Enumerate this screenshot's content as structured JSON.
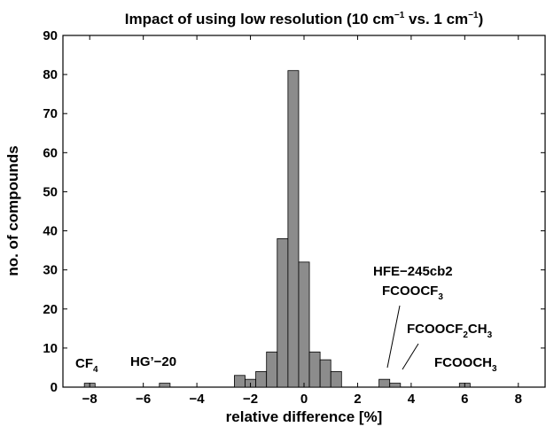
{
  "chart_data": {
    "type": "bar",
    "title_parts": [
      "Impact of using low resolution (10 cm",
      "−1",
      " vs. 1 cm",
      "−1",
      ")"
    ],
    "xlabel": "relative difference [%]",
    "ylabel": "no. of compounds",
    "xlim": [
      -9,
      9
    ],
    "ylim": [
      0,
      90
    ],
    "xticks": [
      "−8",
      "−6",
      "−4",
      "−2",
      "0",
      "2",
      "4",
      "6",
      "8"
    ],
    "xtick_values": [
      -8,
      -6,
      -4,
      -2,
      0,
      2,
      4,
      6,
      8
    ],
    "yticks": [
      "0",
      "10",
      "20",
      "30",
      "40",
      "50",
      "60",
      "70",
      "80",
      "90"
    ],
    "ytick_values": [
      0,
      10,
      20,
      30,
      40,
      50,
      60,
      70,
      80,
      90
    ],
    "bin_width": 0.4,
    "bars": [
      {
        "x": -8.0,
        "value": 1
      },
      {
        "x": -5.2,
        "value": 1
      },
      {
        "x": -2.4,
        "value": 3
      },
      {
        "x": -2.0,
        "value": 2
      },
      {
        "x": -1.6,
        "value": 4
      },
      {
        "x": -1.2,
        "value": 9
      },
      {
        "x": -0.8,
        "value": 38
      },
      {
        "x": -0.4,
        "value": 81
      },
      {
        "x": 0.0,
        "value": 32
      },
      {
        "x": 0.4,
        "value": 9
      },
      {
        "x": 0.8,
        "value": 7
      },
      {
        "x": 1.2,
        "value": 4
      },
      {
        "x": 3.0,
        "value": 2
      },
      {
        "x": 3.4,
        "value": 1
      },
      {
        "x": 6.0,
        "value": 1
      }
    ],
    "bar_color": "#8c8c8c",
    "annotations": {
      "cf4": {
        "main": "CF",
        "sub": "4"
      },
      "hg20": {
        "text": "HG’−20"
      },
      "hfe": {
        "text": "HFE−245cb2"
      },
      "fcoocf3": {
        "main": "FCOOCF",
        "sub": "3"
      },
      "fcoocf2ch3": {
        "p1": "FCOOCF",
        "s1": "2",
        "p2": "CH",
        "s2": "3"
      },
      "fcooch3": {
        "main": "FCOOCH",
        "sub": "3"
      }
    }
  }
}
